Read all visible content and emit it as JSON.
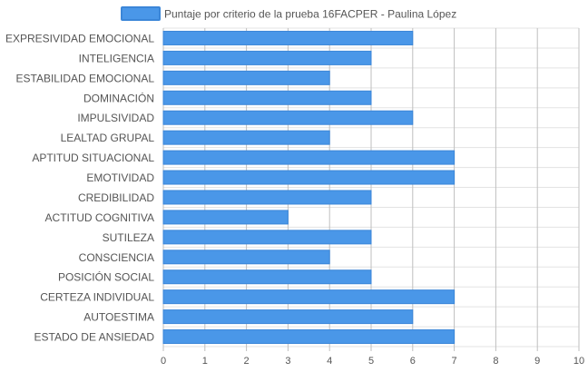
{
  "chart_data": {
    "type": "bar",
    "orientation": "horizontal",
    "legend": {
      "label": "Puntaje por criterio de la prueba 16FACPER - Paulina López",
      "placement": "top"
    },
    "categories": [
      "EXPRESIVIDAD EMOCIONAL",
      "INTELIGENCIA",
      "ESTABILIDAD EMOCIONAL",
      "DOMINACIÓN",
      "IMPULSIVIDAD",
      "LEALTAD GRUPAL",
      "APTITUD SITUACIONAL",
      "EMOTIVIDAD",
      "CREDIBILIDAD",
      "ACTITUD COGNITIVA",
      "SUTILEZA",
      "CONSCIENCIA",
      "POSICIÓN SOCIAL",
      "CERTEZA INDIVIDUAL",
      "AUTOESTIMA",
      "ESTADO DE ANSIEDAD"
    ],
    "series": [
      {
        "name": "Puntaje por criterio de la prueba 16FACPER - Paulina López",
        "values": [
          6,
          5,
          4,
          5,
          6,
          4,
          7,
          7,
          5,
          3,
          5,
          4,
          5,
          7,
          6,
          7
        ]
      }
    ],
    "xlim": [
      0,
      10
    ],
    "xticks": [
      "0",
      "1",
      "2",
      "3",
      "4",
      "5",
      "6",
      "7",
      "8",
      "9",
      "10"
    ],
    "grid": true,
    "colors": {
      "bar": "#4a97e8",
      "bar_border": "#3b86d8",
      "grid": "#e3e3e3",
      "grid_major": "#bfbfbf",
      "text": "#555555"
    }
  }
}
